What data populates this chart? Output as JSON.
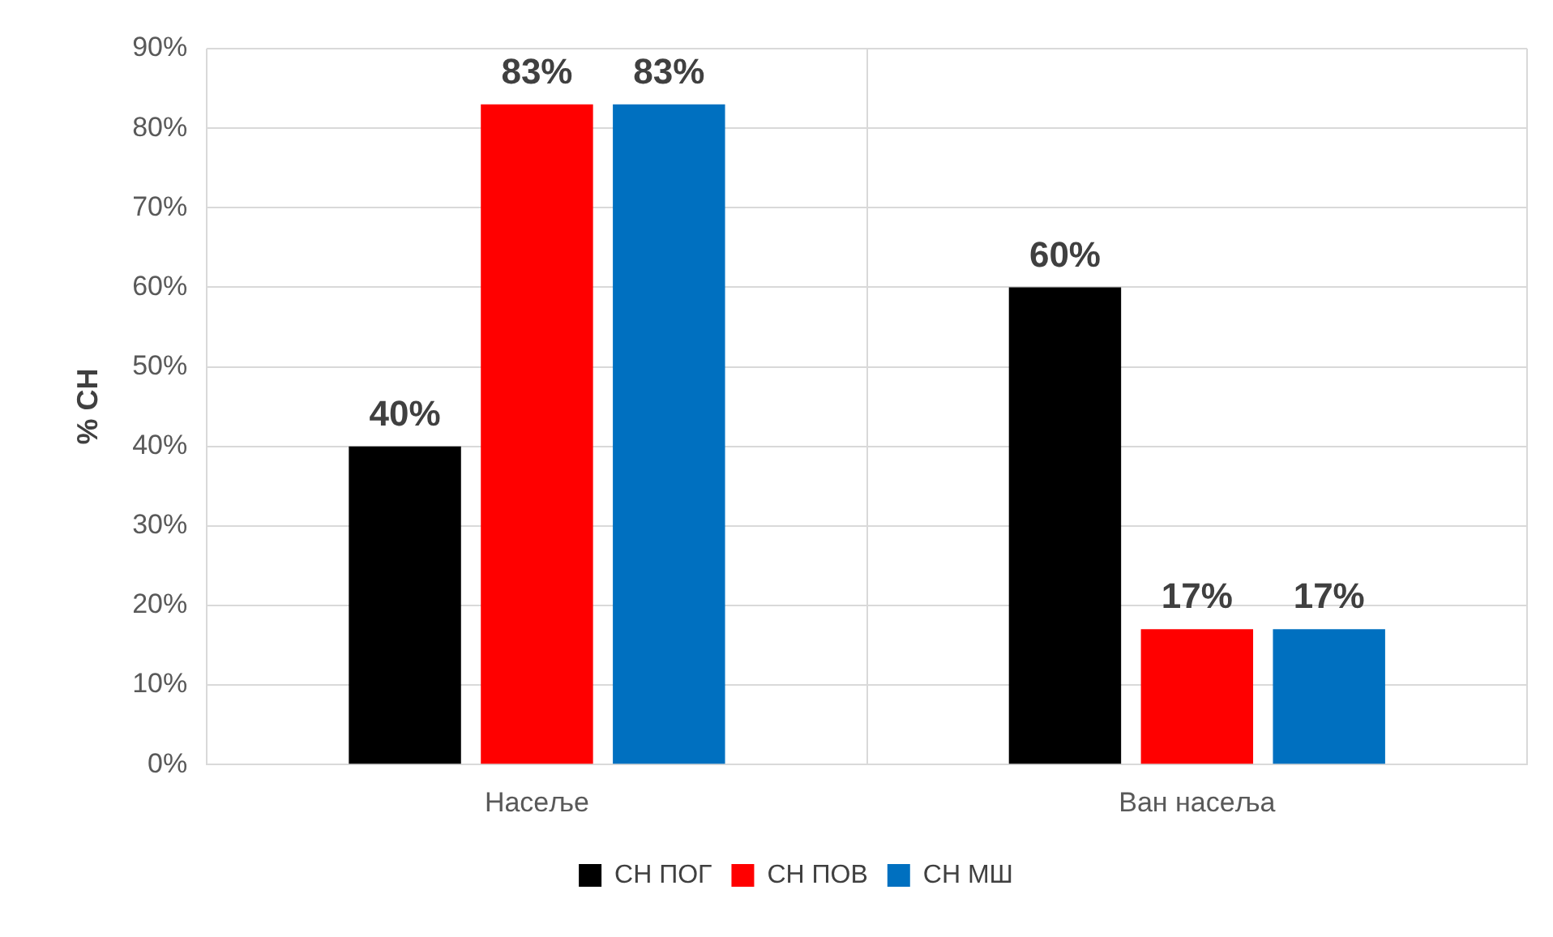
{
  "chart_data": {
    "type": "bar",
    "ylabel": "% СН",
    "categories": [
      "Насеље",
      "Ван насеља"
    ],
    "series": [
      {
        "name": "СН ПОГ",
        "color": "#000000",
        "values": [
          40,
          60
        ],
        "value_labels": [
          "40%",
          "60%"
        ]
      },
      {
        "name": "СН ПОВ",
        "color": "#ff0000",
        "values": [
          83,
          17
        ],
        "value_labels": [
          "83%",
          "17%"
        ]
      },
      {
        "name": "СН МШ",
        "color": "#0070c0",
        "values": [
          83,
          17
        ],
        "value_labels": [
          "83%",
          "17%"
        ]
      }
    ],
    "ylim": [
      0,
      90
    ],
    "yticks": [
      {
        "value": 0,
        "label": "0%"
      },
      {
        "value": 10,
        "label": "10%"
      },
      {
        "value": 20,
        "label": "20%"
      },
      {
        "value": 30,
        "label": "30%"
      },
      {
        "value": 40,
        "label": "40%"
      },
      {
        "value": 50,
        "label": "50%"
      },
      {
        "value": 60,
        "label": "60%"
      },
      {
        "value": 70,
        "label": "70%"
      },
      {
        "value": 80,
        "label": "80%"
      },
      {
        "value": 90,
        "label": "90%"
      }
    ],
    "grid": true,
    "legend": "bottom"
  }
}
